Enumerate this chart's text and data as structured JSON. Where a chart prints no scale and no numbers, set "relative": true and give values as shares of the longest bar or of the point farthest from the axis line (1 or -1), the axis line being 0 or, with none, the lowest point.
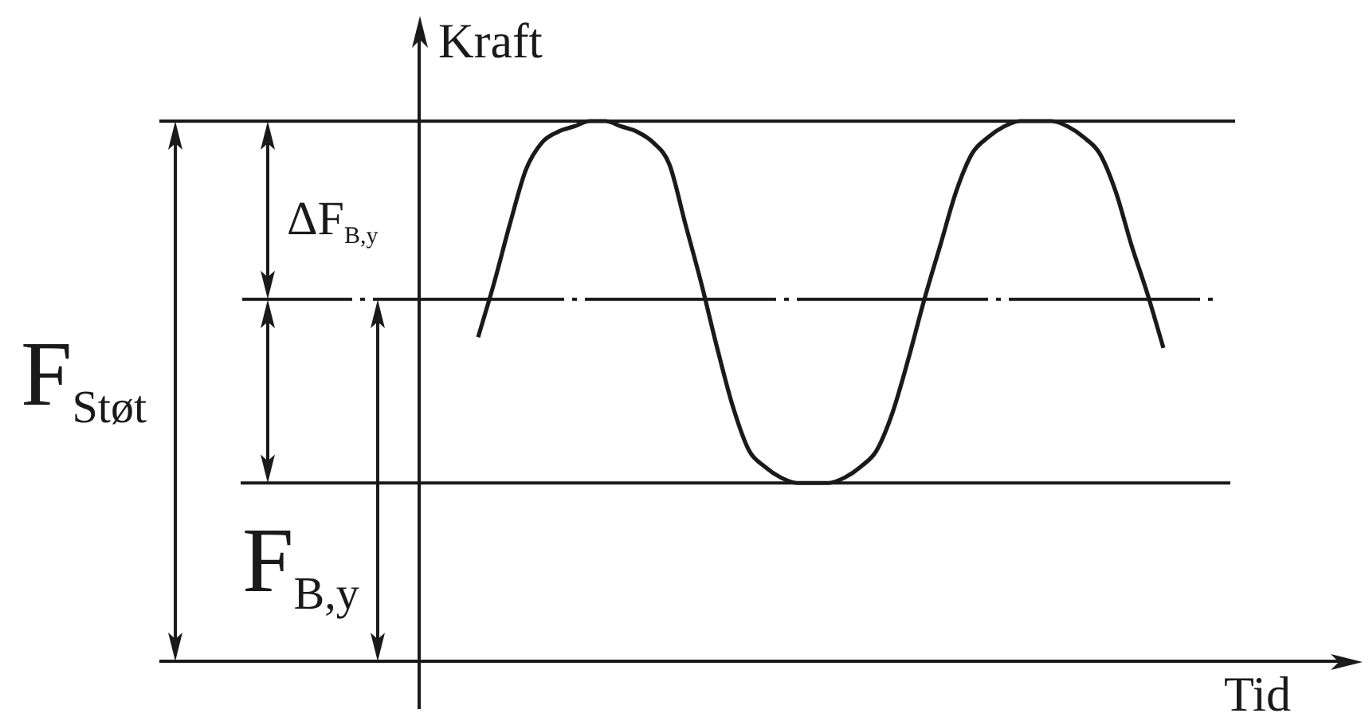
{
  "chart_data": {
    "type": "line",
    "xlabel": "Tid",
    "ylabel": "Kraft",
    "relative": true,
    "categories": [
      null,
      null,
      null,
      null,
      null,
      null,
      null,
      null,
      null,
      null,
      null,
      null,
      null,
      null,
      null,
      null,
      null,
      null,
      null,
      null,
      null,
      null,
      null,
      null,
      null,
      null,
      null,
      null,
      null,
      null,
      null,
      null,
      null,
      null,
      null,
      null,
      null,
      null,
      null,
      null,
      null,
      null,
      null,
      null
    ],
    "series": [
      {
        "color": "#1a1a1a",
        "values": [
          0.6,
          0.7,
          0.81,
          0.91,
          0.96,
          0.98,
          0.99,
          1,
          1,
          0.99,
          0.98,
          0.96,
          0.92,
          0.81,
          0.7,
          0.58,
          0.47,
          0.39,
          0.36,
          0.34,
          0.33,
          0.33,
          0.33,
          0.34,
          0.36,
          0.39,
          0.46,
          0.56,
          0.67,
          0.77,
          0.87,
          0.94,
          0.97,
          0.99,
          1,
          1,
          1,
          0.99,
          0.97,
          0.94,
          0.87,
          0.77,
          0.68,
          0.58
        ]
      }
    ],
    "ref_lines": [
      {
        "axis": "y",
        "value": 1
      },
      {
        "axis": "y",
        "value": 0.67,
        "line_style": "dashed"
      },
      {
        "axis": "y",
        "value": 0.33
      }
    ],
    "annotations": [
      "F$_{Støt}$",
      "ΔF$_{B,y}$",
      "F$_{B,y}$"
    ],
    "legend": false,
    "grid": false,
    "tick_labels": false,
    "marker": "none"
  }
}
